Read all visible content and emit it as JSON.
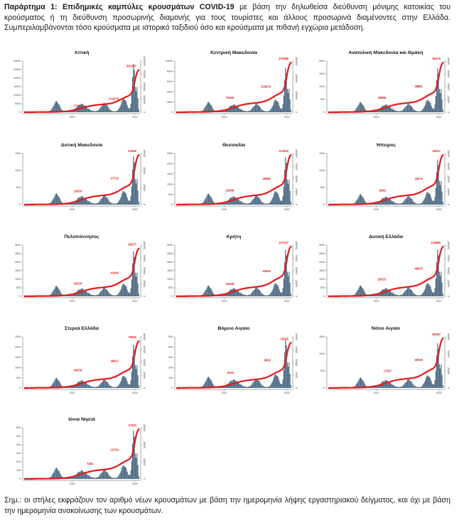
{
  "caption": {
    "lead": "Παράρτημα 1: Επιδημικές καμπύλες κρουσμάτων COVID-19",
    "rest": " με βάση την δηλωθείσα διεύθυνση μόνιμης κατοικίας του κρούσματος ή τη διεύθυνση προσωρινής διαμονής για τους τουρίστες και άλλους προσωρινά διαμένοντες στην Ελλάδα. Συμπεριλαμβάνονται τόσο κρούσματα με ιστορικό ταξιδιού όσο και κρούσματα με πιθανή εγχώρια μετάδοση."
  },
  "note": "Σημ.: οι στήλες εκφράζουν τον αριθμό νέων κρουσμάτων με βάση την ημερομηνία λήψης εργαστηριακού δείγματος, και όχι με βάση την ημερομηνία ανακοίνωσης των κρουσμάτων.",
  "colors": {
    "bars": "#4d6b85",
    "line": "#e41a1c",
    "axis": "#555555"
  },
  "chart_data": [
    {
      "type": "bar",
      "title": "Αττική",
      "yticks_left": [
        "0",
        "5000",
        "10000",
        "15000",
        "20000",
        "25000",
        "30000"
      ],
      "yticks_right": [
        "0",
        "250000",
        "500000",
        "750000",
        "1000000"
      ],
      "ylim": [
        0,
        30000
      ],
      "ylim_right": [
        0,
        1000000
      ],
      "xtick_labels": [
        "2021",
        "2022"
      ],
      "annotations": [
        {
          "label": "77273",
          "x": 0.5,
          "y": 77273
        },
        {
          "label": "213076",
          "x": 0.82,
          "y": 213076
        },
        {
          "label": "852357",
          "x": 0.975,
          "y": 852357
        }
      ],
      "bar_peak": 28000
    },
    {
      "type": "bar",
      "title": "Κεντρική Μακεδονία",
      "yticks_left": [
        "0",
        "2000",
        "4000",
        "6000",
        "8000",
        "10000"
      ],
      "yticks_right": [
        "0",
        "100000",
        "200000",
        "300000"
      ],
      "ylim": [
        0,
        10000
      ],
      "ylim_right": [
        0,
        300000
      ],
      "xtick_labels": [
        "2021",
        "2022"
      ],
      "annotations": [
        {
          "label": "70485",
          "x": 0.5,
          "y": 70485
        },
        {
          "label": "135878",
          "x": 0.82,
          "y": 135878
        },
        {
          "label": "375388",
          "x": 0.975,
          "y": 375388
        }
      ],
      "bar_peak": 8600
    },
    {
      "type": "bar",
      "title": "Ανατολική Μακεδονία και Θράκη",
      "yticks_left": [
        "0",
        "500",
        "1000",
        "1500",
        "2000"
      ],
      "yticks_right": [
        "0",
        "20000",
        "40000",
        "60000",
        "80000"
      ],
      "ylim": [
        0,
        2000
      ],
      "ylim_right": [
        0,
        80000
      ],
      "xtick_labels": [
        "2021",
        "2022"
      ],
      "annotations": [
        {
          "label": "18898",
          "x": 0.5,
          "y": 18898
        },
        {
          "label": "36881",
          "x": 0.82,
          "y": 36881
        },
        {
          "label": "84479",
          "x": 0.975,
          "y": 84479
        }
      ],
      "bar_peak": 1700
    },
    {
      "type": "bar",
      "title": "Δυτική Μακεδονία",
      "yticks_left": [
        "0",
        "500",
        "1000",
        "1500"
      ],
      "yticks_right": [
        "0",
        "20000",
        "40000",
        "60000"
      ],
      "ylim": [
        0,
        1500
      ],
      "ylim_right": [
        0,
        60000
      ],
      "xtick_labels": [
        "2021",
        "2022"
      ],
      "annotations": [
        {
          "label": "13030",
          "x": 0.5,
          "y": 13030
        },
        {
          "label": "27716",
          "x": 0.82,
          "y": 27716
        },
        {
          "label": "61609",
          "x": 0.975,
          "y": 61609
        }
      ],
      "bar_peak": 1400
    },
    {
      "type": "bar",
      "title": "Θεσσαλία",
      "yticks_left": [
        "0",
        "500",
        "1000",
        "1500",
        "2000",
        "2500"
      ],
      "yticks_right": [
        "0",
        "25000",
        "50000",
        "75000",
        "100000"
      ],
      "ylim": [
        0,
        2500
      ],
      "ylim_right": [
        0,
        100000
      ],
      "xtick_labels": [
        "2021",
        "2022"
      ],
      "annotations": [
        {
          "label": "22688",
          "x": 0.5,
          "y": 22688
        },
        {
          "label": "45989",
          "x": 0.82,
          "y": 45989
        },
        {
          "label": "113034",
          "x": 0.975,
          "y": 113034
        }
      ],
      "bar_peak": 2300
    },
    {
      "type": "bar",
      "title": "Ήπειρος",
      "yticks_left": [
        "0",
        "500",
        "1000",
        "1500"
      ],
      "yticks_right": [
        "0",
        "10000",
        "20000",
        "30000",
        "40000"
      ],
      "ylim": [
        0,
        1500
      ],
      "ylim_right": [
        0,
        40000
      ],
      "xtick_labels": [
        "2021",
        "2022"
      ],
      "annotations": [
        {
          "label": "9092",
          "x": 0.5,
          "y": 9092
        },
        {
          "label": "18274",
          "x": 0.82,
          "y": 18274
        },
        {
          "label": "45227",
          "x": 0.975,
          "y": 45227
        }
      ],
      "bar_peak": 1300
    },
    {
      "type": "bar",
      "title": "Πελοπόννησος",
      "yticks_left": [
        "0",
        "500",
        "1000",
        "1500",
        "2000",
        "2500",
        "3000"
      ],
      "yticks_right": [
        "0",
        "25000",
        "50000",
        "75000",
        "100000"
      ],
      "ylim": [
        0,
        3000
      ],
      "ylim_right": [
        0,
        100000
      ],
      "xtick_labels": [
        "2021",
        "2022"
      ],
      "annotations": [
        {
          "label": "20330",
          "x": 0.5,
          "y": 20330
        },
        {
          "label": "41006",
          "x": 0.82,
          "y": 41006
        },
        {
          "label": "96377",
          "x": 0.975,
          "y": 96377
        }
      ],
      "bar_peak": 2600
    },
    {
      "type": "bar",
      "title": "Κρήτη",
      "yticks_left": [
        "0",
        "500",
        "1000",
        "1500",
        "2000",
        "2500",
        "3000"
      ],
      "yticks_right": [
        "0",
        "25000",
        "50000",
        "75000",
        "100000"
      ],
      "ylim": [
        0,
        3000
      ],
      "ylim_right": [
        0,
        100000
      ],
      "xtick_labels": [
        "2021",
        "2022"
      ],
      "annotations": [
        {
          "label": "19348",
          "x": 0.5,
          "y": 19348
        },
        {
          "label": "44626",
          "x": 0.82,
          "y": 44626
        },
        {
          "label": "107127",
          "x": 0.975,
          "y": 107127
        }
      ],
      "bar_peak": 2700
    },
    {
      "type": "bar",
      "title": "Δυτική Ελλάδα",
      "yticks_left": [
        "0",
        "500",
        "1000",
        "1500",
        "2000",
        "2500",
        "3000"
      ],
      "yticks_right": [
        "0",
        "25000",
        "50000",
        "75000",
        "100000"
      ],
      "ylim": [
        0,
        3000
      ],
      "ylim_right": [
        0,
        100000
      ],
      "xtick_labels": [
        "2021",
        "2022"
      ],
      "annotations": [
        {
          "label": "28315",
          "x": 0.5,
          "y": 28315
        },
        {
          "label": "48976",
          "x": 0.82,
          "y": 48976
        },
        {
          "label": "103865",
          "x": 0.975,
          "y": 103865
        }
      ],
      "bar_peak": 2700
    },
    {
      "type": "bar",
      "title": "Στερεά Ελλάδα",
      "yticks_left": [
        "0",
        "500",
        "1000",
        "1500",
        "2000",
        "2500"
      ],
      "yticks_right": [
        "0",
        "20000",
        "40000",
        "60000",
        "80000"
      ],
      "ylim": [
        0,
        2500
      ],
      "ylim_right": [
        0,
        80000
      ],
      "xtick_labels": [
        "2021",
        "2022"
      ],
      "annotations": [
        {
          "label": "24034",
          "x": 0.5,
          "y": 24034
        },
        {
          "label": "38412",
          "x": 0.82,
          "y": 38412
        },
        {
          "label": "75550",
          "x": 0.975,
          "y": 75550
        }
      ],
      "bar_peak": 2100
    },
    {
      "type": "bar",
      "title": "Βόρειο Αιγαίο",
      "yticks_left": [
        "0",
        "100",
        "200",
        "300",
        "400",
        "500"
      ],
      "yticks_right": [
        "0",
        "5000",
        "10000",
        "15000",
        "20000"
      ],
      "ylim": [
        0,
        500
      ],
      "ylim_right": [
        0,
        20000
      ],
      "xtick_labels": [
        "2021",
        "2022"
      ],
      "annotations": [
        {
          "label": "5022",
          "x": 0.5,
          "y": 5022
        },
        {
          "label": "9830",
          "x": 0.82,
          "y": 9830
        },
        {
          "label": "18235",
          "x": 0.975,
          "y": 18235
        }
      ],
      "bar_peak": 470
    },
    {
      "type": "bar",
      "title": "Νότιο Αιγαίο",
      "yticks_left": [
        "0",
        "500",
        "1000",
        "1500"
      ],
      "yticks_right": [
        "0",
        "20000",
        "40000",
        "60000"
      ],
      "ylim": [
        0,
        1500
      ],
      "ylim_right": [
        0,
        60000
      ],
      "xtick_labels": [
        "2021",
        "2022"
      ],
      "annotations": [
        {
          "label": "17087",
          "x": 0.55,
          "y": 17087
        },
        {
          "label": "30039",
          "x": 0.82,
          "y": 30039
        },
        {
          "label": "60287",
          "x": 0.975,
          "y": 60287
        }
      ],
      "bar_peak": 1300
    },
    {
      "type": "bar",
      "title": "Ιόνια Νησιά",
      "yticks_left": [
        "0",
        "100",
        "200",
        "300",
        "400",
        "500",
        "600"
      ],
      "yticks_right": [
        "0",
        "10000",
        "20000",
        "30000"
      ],
      "ylim": [
        0,
        600
      ],
      "ylim_right": [
        0,
        30000
      ],
      "xtick_labels": [
        "2021",
        "2022"
      ],
      "annotations": [
        {
          "label": "7481",
          "x": 0.6,
          "y": 7481
        },
        {
          "label": "15700",
          "x": 0.82,
          "y": 15700
        },
        {
          "label": "37403",
          "x": 0.975,
          "y": 37403
        }
      ],
      "bar_peak": 560
    }
  ]
}
